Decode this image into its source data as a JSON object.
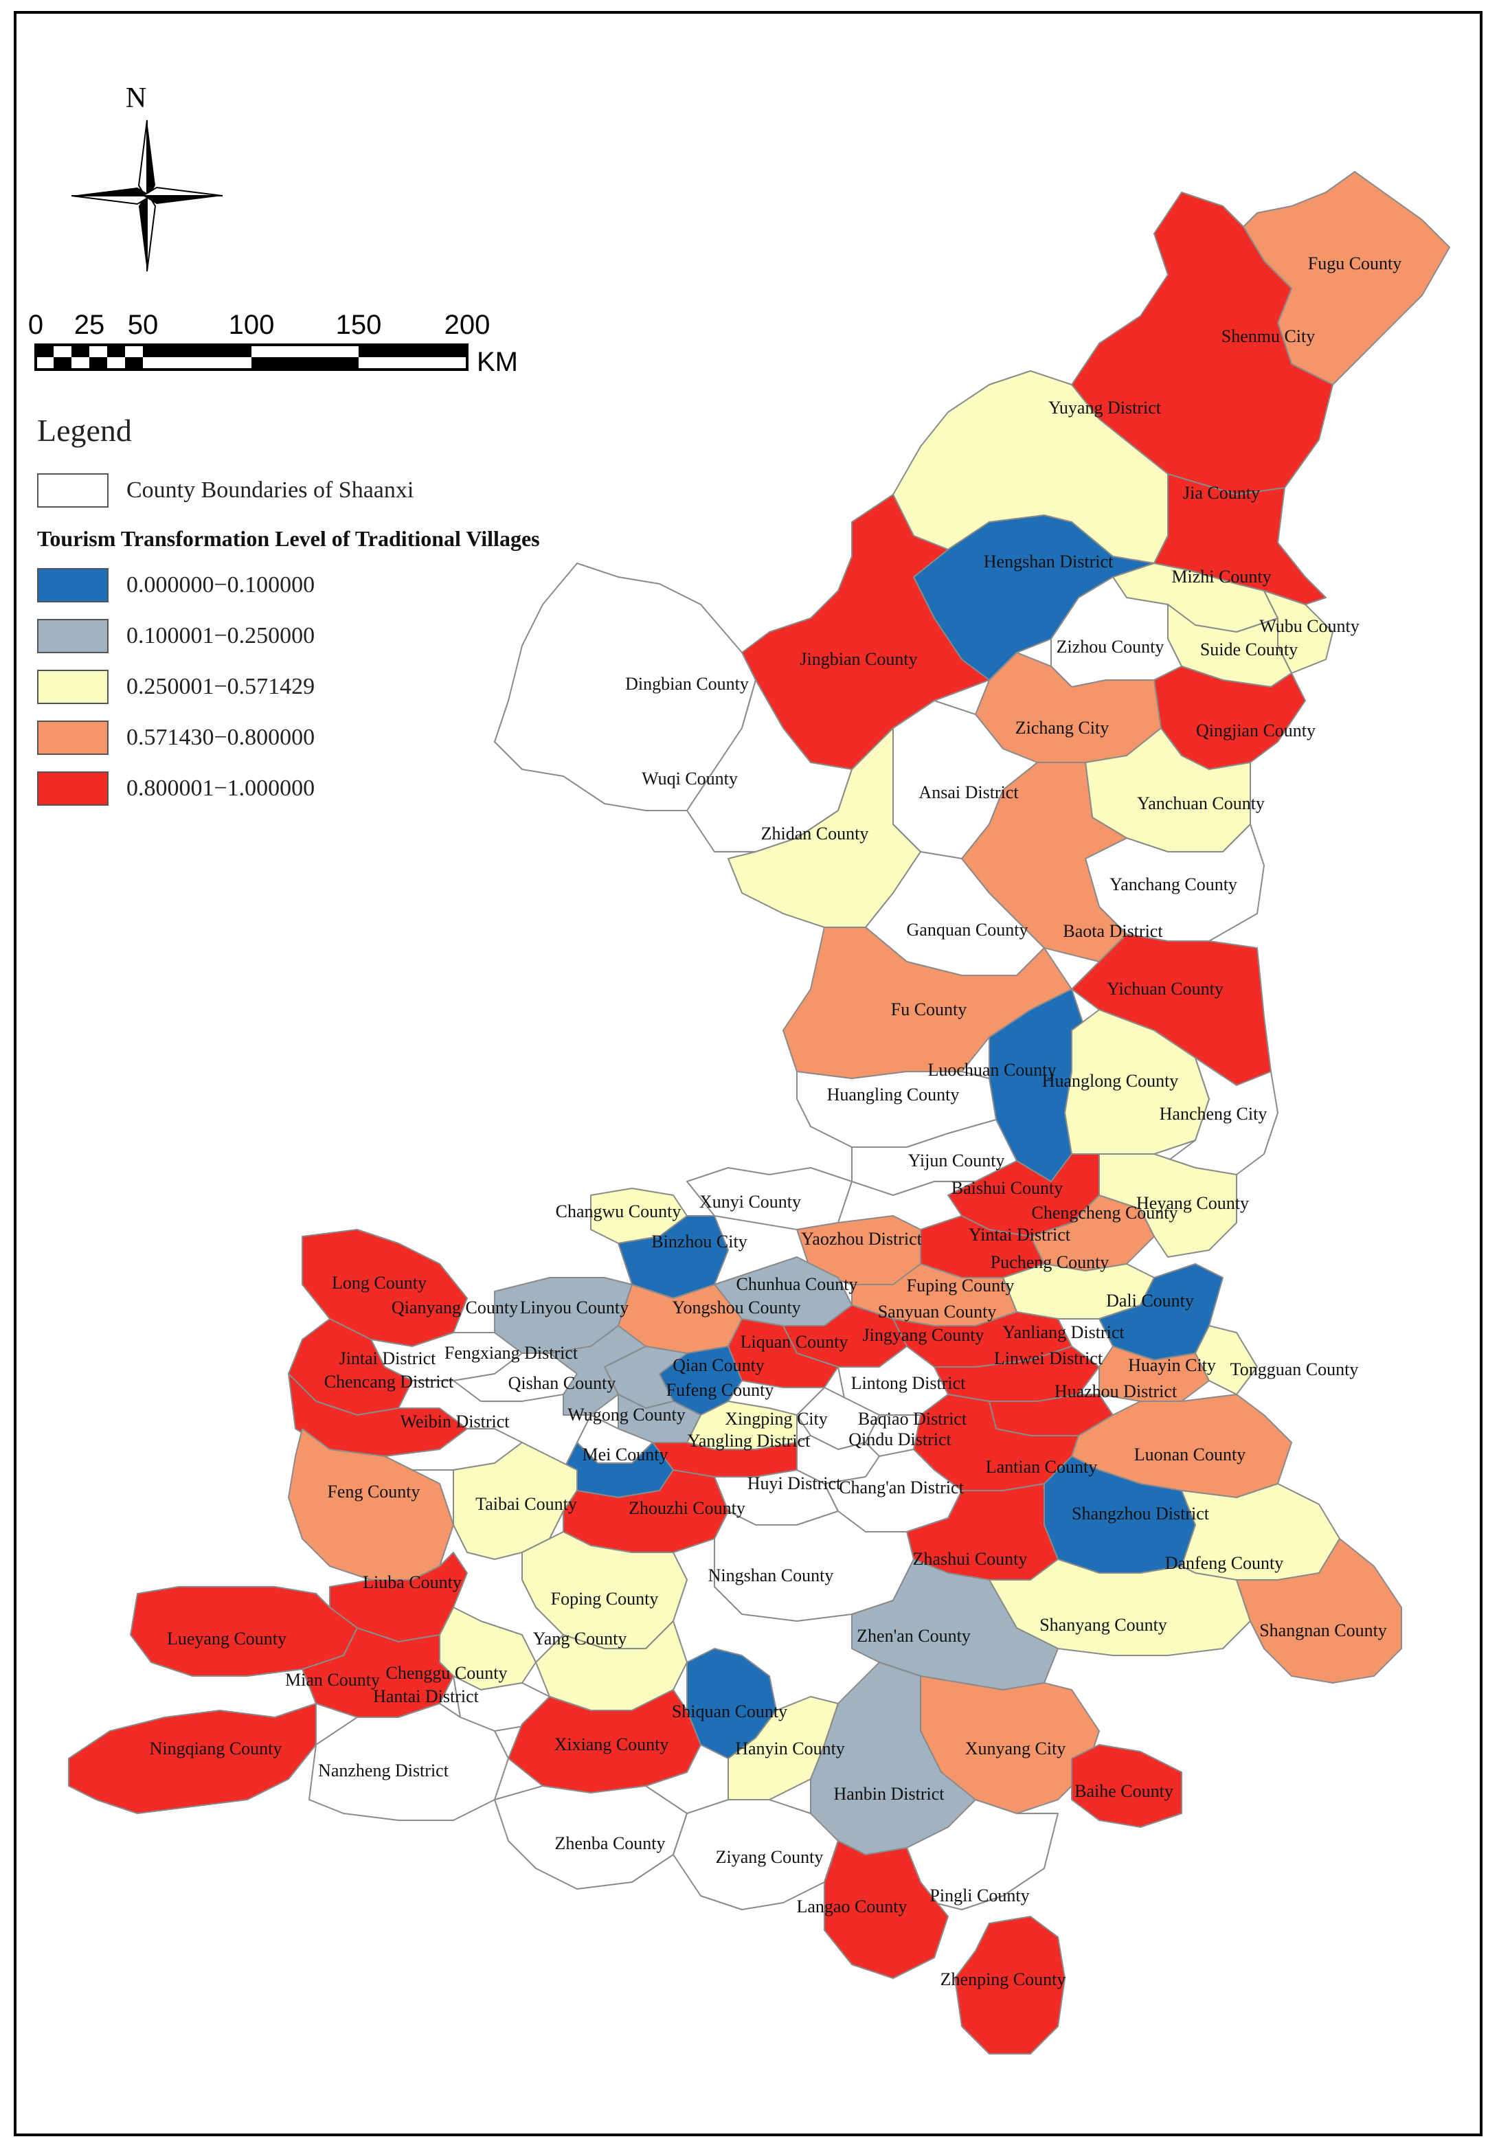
{
  "north_label": "N",
  "scale": {
    "ticks": [
      "0",
      "25",
      "50",
      "100",
      "150",
      "200"
    ],
    "unit": "KM"
  },
  "legend": {
    "title": "Legend",
    "boundary_label": "County Boundaries of Shaanxi",
    "subtitle": "Tourism Transformation Level of Traditional Villages",
    "classes": [
      {
        "label": "0.000000−0.100000",
        "color": "#1f6fb7"
      },
      {
        "label": "0.100001−0.250000",
        "color": "#a1b3c1"
      },
      {
        "label": "0.250001−0.571429",
        "color": "#fafcc0"
      },
      {
        "label": "0.571430−0.800000",
        "color": "#f4956a"
      },
      {
        "label": "0.800001−1.000000",
        "color": "#f12c26"
      }
    ]
  },
  "counties": [
    "Fugu County",
    "Shenmu City",
    "Yuyang District",
    "Jia County",
    "Hengshan District",
    "Mizhi County",
    "Wubu County",
    "Suide County",
    "Zizhou County",
    "Jingbian County",
    "Dingbian County",
    "Qingjian County",
    "Zichang City",
    "Wuqi County",
    "Ansai District",
    "Yanchuan County",
    "Zhidan County",
    "Yanchang County",
    "Ganquan County",
    "Baota District",
    "Yichuan County",
    "Fu County",
    "Luochuan County",
    "Huanglong County",
    "Huangling County",
    "Hancheng City",
    "Yijun County",
    "Baishui County",
    "Xunyi County",
    "Changwu County",
    "Chengcheng County",
    "Heyang County",
    "Yintai District",
    "Binzhou City",
    "Yaozhou District",
    "Pucheng County",
    "Long County",
    "Chunhua County",
    "Fuping County",
    "Dali County",
    "Qianyang County",
    "Linyou County",
    "Yongshou County",
    "Sanyuan County",
    "Jingyang County",
    "Yanliang District",
    "Fengxiang District",
    "Liquan County",
    "Linwei District",
    "Huayin City",
    "Tongguan County",
    "Jintai District",
    "Qian County",
    "Chencang District",
    "Qishan County",
    "Fufeng County",
    "Lintong District",
    "Huazhou District",
    "Wugong County",
    "Weibin District",
    "Xingping City",
    "Baqiao District",
    "Yangling District",
    "Qindu District",
    "Mei County",
    "Luonan County",
    "Lantian County",
    "Huyi District",
    "Chang'an District",
    "Feng County",
    "Taibai County",
    "Zhouzhi County",
    "Shangzhou District",
    "Zhashui County",
    "Danfeng County",
    "Liuba County",
    "Ningshan County",
    "Foping County",
    "Shanyang County",
    "Lueyang County",
    "Shangnan County",
    "Zhen'an County",
    "Yang County",
    "Chenggu County",
    "Mian County",
    "Hantai District",
    "Shiquan County",
    "Xixiang County",
    "Hanyin County",
    "Ningqiang County",
    "Xunyang City",
    "Nanzheng District",
    "Baihe County",
    "Hanbin District",
    "Zhenba County",
    "Ziyang County",
    "Pingli County",
    "Langao County",
    "Zhenping County"
  ]
}
